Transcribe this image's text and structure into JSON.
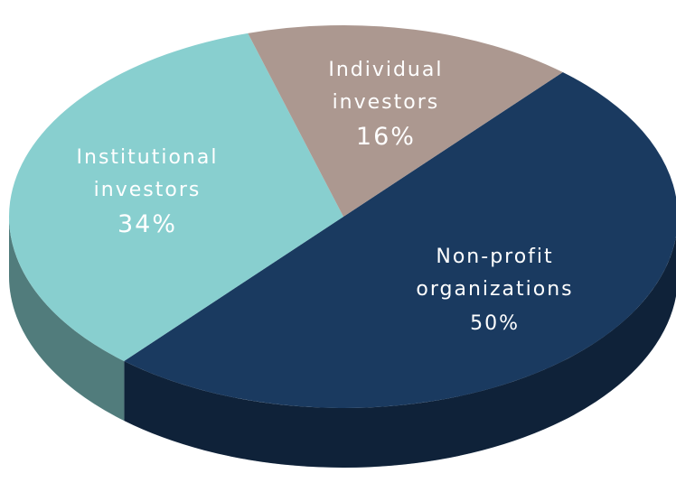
{
  "chart_data": {
    "type": "pie3d",
    "categories": [
      "Non-profit organizations",
      "Institutional investors",
      "Individual investors"
    ],
    "values": [
      50,
      34,
      16
    ],
    "value_labels": [
      "50%",
      "34%",
      "16%"
    ],
    "colors": [
      "#1a3a60",
      "#88cfcf",
      "#ac9890"
    ]
  }
}
